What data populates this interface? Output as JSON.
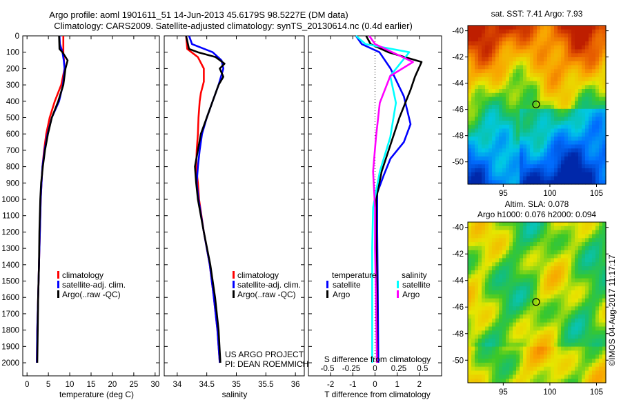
{
  "header": {
    "title_line1": "Argo profile: aoml 1901611_51 14-Jun-2013 45.6179S 98.5227E (DM data)",
    "title_line2": "Climatology: CARS2009. Satellite-adjusted climatology: synTS_20130614.nc (0.4d earlier)"
  },
  "credits": {
    "project": "US ARGO PROJECT",
    "pi": "PI: DEAN ROEMMICH",
    "stamp": "©IMOS 04-Aug-2017 11:17:17"
  },
  "colors": {
    "climatology": "#ff0000",
    "satellite": "#0000ff",
    "argo": "#000000",
    "sal_satellite": "#00ffff",
    "sal_argo": "#ff00ff"
  },
  "chart_data": [
    {
      "type": "line",
      "xlabel": "temperature (deg C)",
      "ylabel": "",
      "xlim": [
        -1,
        31
      ],
      "ylim": [
        2080,
        0
      ],
      "xticks": [
        0,
        5,
        10,
        15,
        20,
        25,
        30
      ],
      "yticks": [
        0,
        100,
        200,
        300,
        400,
        500,
        600,
        700,
        800,
        900,
        1000,
        1100,
        1200,
        1300,
        1400,
        1500,
        1600,
        1700,
        1800,
        1900,
        2000
      ],
      "legend": [
        "climatology",
        "satellite-adj. clim.",
        "Argo(..raw -QC)"
      ],
      "legend_placement": "lower-center",
      "series": [
        {
          "name": "climatology",
          "color": "#ff0000",
          "depth": [
            0,
            100,
            200,
            300,
            400,
            500,
            600,
            700,
            800,
            900,
            1000,
            1200,
            1400,
            1600,
            1800,
            2000
          ],
          "values": [
            8.5,
            8.5,
            8.8,
            8.0,
            6.5,
            5.3,
            4.5,
            4.0,
            3.6,
            3.4,
            3.2,
            3.0,
            2.8,
            2.6,
            2.4,
            2.3
          ]
        },
        {
          "name": "satellite-adj. clim.",
          "color": "#0000ff",
          "depth": [
            0,
            50,
            100,
            150,
            200,
            300,
            400,
            500,
            600,
            700,
            800,
            900,
            1000,
            1200,
            1400,
            1600,
            1800,
            2000
          ],
          "values": [
            7.6,
            7.7,
            8.3,
            8.6,
            8.8,
            8.4,
            7.5,
            5.8,
            4.8,
            4.1,
            3.6,
            3.4,
            3.2,
            3.0,
            2.8,
            2.6,
            2.4,
            2.3
          ]
        },
        {
          "name": "Argo(..raw -QC)",
          "color": "#000000",
          "depth": [
            0,
            80,
            100,
            150,
            200,
            300,
            400,
            500,
            600,
            700,
            800,
            900,
            1000,
            1200,
            1400,
            1600,
            1800,
            2000
          ],
          "values": [
            7.5,
            7.6,
            8.3,
            9.5,
            9.0,
            8.5,
            7.3,
            5.8,
            4.9,
            4.2,
            3.7,
            3.3,
            3.1,
            2.9,
            2.8,
            2.6,
            2.5,
            2.4
          ]
        }
      ]
    },
    {
      "type": "line",
      "xlabel": "salinity",
      "xlim": [
        33.78,
        36.15
      ],
      "ylim": [
        2080,
        0
      ],
      "xticks": [
        34,
        34.5,
        35,
        35.5,
        36
      ],
      "xticklabels": [
        "34",
        "34.5",
        "35",
        "35.5",
        "36"
      ],
      "legend": [
        "climatology",
        "satellite-adj. clim.",
        "Argo(..raw -QC)"
      ],
      "legend_placement": "lower-center",
      "series": [
        {
          "name": "climatology",
          "color": "#ff0000",
          "depth": [
            0,
            80,
            130,
            200,
            280,
            350,
            400,
            500,
            600,
            700,
            800,
            900,
            1000,
            1200,
            1400,
            1600,
            1800,
            2000
          ],
          "values": [
            34.15,
            34.17,
            34.35,
            34.45,
            34.45,
            34.4,
            34.38,
            34.36,
            34.35,
            34.33,
            34.32,
            34.35,
            34.37,
            34.45,
            34.55,
            34.62,
            34.68,
            34.72
          ]
        },
        {
          "name": "satellite-adj. clim.",
          "color": "#0000ff",
          "depth": [
            0,
            50,
            100,
            150,
            200,
            300,
            400,
            500,
            600,
            700,
            800,
            900,
            1000,
            1200,
            1400,
            1600,
            1800,
            2000
          ],
          "values": [
            34.2,
            34.25,
            34.6,
            34.75,
            34.78,
            34.7,
            34.6,
            34.5,
            34.42,
            34.38,
            34.35,
            34.33,
            34.36,
            34.45,
            34.55,
            34.62,
            34.68,
            34.72
          ]
        },
        {
          "name": "Argo(..raw -QC)",
          "color": "#000000",
          "depth": [
            0,
            80,
            100,
            130,
            170,
            200,
            250,
            300,
            400,
            500,
            600,
            700,
            800,
            900,
            1000,
            1200,
            1400,
            1600,
            1800,
            2000
          ],
          "values": [
            34.15,
            34.2,
            34.35,
            34.65,
            34.8,
            34.72,
            34.78,
            34.7,
            34.6,
            34.5,
            34.4,
            34.35,
            34.3,
            34.32,
            34.35,
            34.45,
            34.56,
            34.64,
            34.7,
            34.73
          ]
        }
      ]
    },
    {
      "type": "line",
      "xlabel": "T difference from climatology",
      "x2label": "S difference from climatology",
      "xlim": [
        -3,
        3
      ],
      "ylim": [
        2080,
        0
      ],
      "xticks": [
        -2,
        -1,
        0,
        1,
        2
      ],
      "x2lim": [
        -0.7,
        0.7
      ],
      "x2ticks": [
        -0.5,
        -0.25,
        0,
        0.25,
        0.5
      ],
      "x2ticklabels": [
        "-0.5",
        "-0.25",
        "0",
        "0.25",
        "0.5"
      ],
      "legend_headers": [
        "temperature",
        "salinity"
      ],
      "legend": [
        "satellite",
        "Argo",
        "satellite",
        "Argo"
      ],
      "legend_placement": "lower-center",
      "series": [
        {
          "name": "temperature satellite",
          "axis": "T",
          "color": "#0000ff",
          "depth": [
            0,
            50,
            100,
            200,
            370,
            540,
            650,
            750,
            850,
            960,
            1200,
            1500,
            2000
          ],
          "values": [
            -0.86,
            -0.6,
            0.2,
            0.7,
            1.3,
            1.6,
            1.3,
            0.7,
            0.4,
            0.1,
            0.1,
            0.12,
            0.15
          ]
        },
        {
          "name": "temperature Argo",
          "axis": "T",
          "color": "#000000",
          "depth": [
            0,
            50,
            100,
            160,
            250,
            330,
            500,
            665,
            830,
            1000,
            1200,
            1500,
            2000
          ],
          "values": [
            -0.4,
            -0.2,
            0.6,
            2.1,
            1.8,
            1.6,
            1.1,
            0.7,
            0.3,
            0.05,
            0.05,
            0.08,
            0.1
          ]
        },
        {
          "name": "salinity satellite",
          "axis": "S",
          "color": "#00ffff",
          "depth": [
            0,
            50,
            100,
            245,
            410,
            620,
            830,
            1050,
            1300,
            1600,
            2000
          ],
          "values": [
            -0.2,
            -0.1,
            0.36,
            0.16,
            0.22,
            0.16,
            0.05,
            -0.02,
            -0.03,
            -0.03,
            -0.03
          ]
        },
        {
          "name": "salinity Argo",
          "axis": "S",
          "color": "#ff00ff",
          "depth": [
            0,
            50,
            160,
            245,
            410,
            620,
            830,
            1050,
            1300,
            1600,
            2000
          ],
          "values": [
            -0.06,
            0.0,
            0.4,
            0.16,
            0.05,
            0.01,
            -0.02,
            0.0,
            0.0,
            0.01,
            0.02
          ]
        }
      ]
    },
    {
      "type": "heatmap",
      "title": "sat. SST: 7.41 Argo: 7.93",
      "xlim": [
        91.2,
        106
      ],
      "ylim": [
        -51.7,
        -39.6
      ],
      "xticks": [
        95,
        100,
        105
      ],
      "yticks": [
        -40,
        -42,
        -44,
        -46,
        -48,
        -50
      ],
      "float_position": [
        98.5227,
        -45.6179
      ]
    },
    {
      "type": "heatmap",
      "title_line1": "Altim. SLA: 0.078",
      "title_line2": "Argo h1000: 0.076 h2000: 0.094",
      "xlim": [
        91.2,
        106
      ],
      "ylim": [
        -51.7,
        -39.6
      ],
      "xticks": [
        95,
        100,
        105
      ],
      "yticks": [
        -40,
        -42,
        -44,
        -46,
        -48,
        -50
      ],
      "float_position": [
        98.5227,
        -45.6179
      ]
    }
  ]
}
